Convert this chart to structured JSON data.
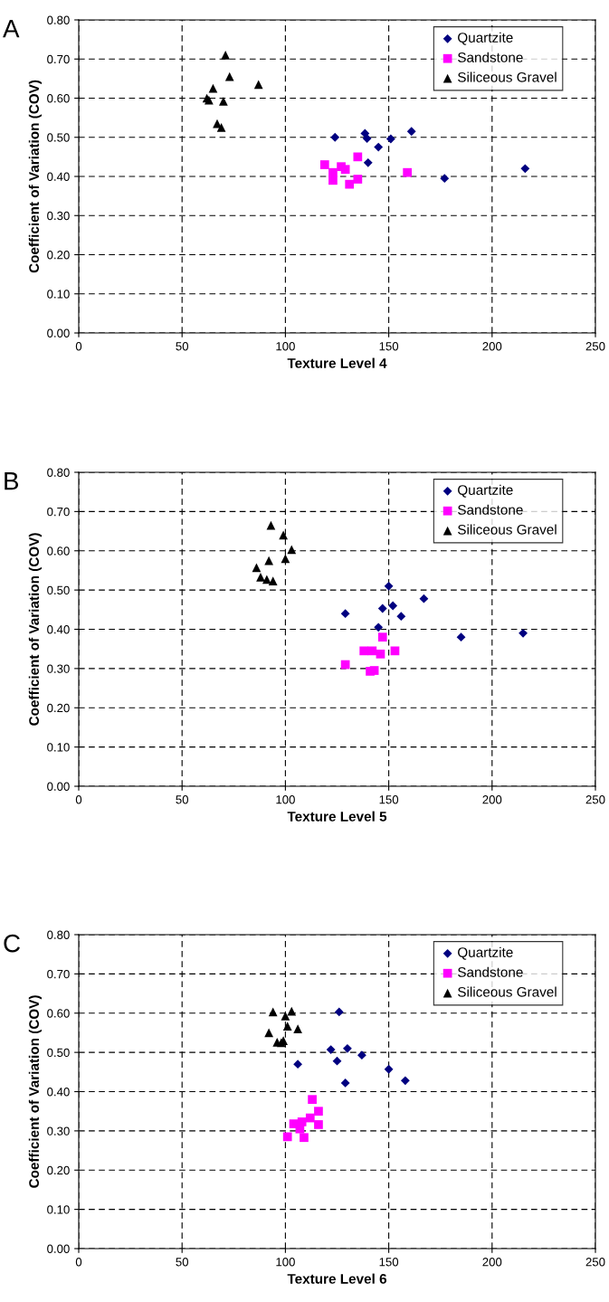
{
  "chart_data": [
    {
      "type": "scatter",
      "annotations": [
        "A"
      ],
      "xlabel": "Texture Level 4",
      "ylabel": "Coefficient of Variation (COV)",
      "xlim": [
        0,
        250
      ],
      "ylim": [
        0,
        0.8
      ],
      "xticks": [
        0,
        50,
        100,
        150,
        200,
        250
      ],
      "yticks": [
        {
          "value": 0,
          "label": "0.00"
        },
        {
          "value": 0.1,
          "label": "0.10"
        },
        {
          "value": 0.2,
          "label": "0.20"
        },
        {
          "value": 0.3,
          "label": "0.30"
        },
        {
          "value": 0.4,
          "label": "0.40"
        },
        {
          "value": 0.5,
          "label": "0.50"
        },
        {
          "value": 0.6,
          "label": "0.60"
        },
        {
          "value": 0.7,
          "label": "0.70"
        },
        {
          "value": 0.8,
          "label": "0.80"
        }
      ],
      "grid": true,
      "legend": "top right",
      "series": [
        {
          "name": "Quartzite",
          "color": "#000080",
          "marker": "diamond",
          "x": [
            124,
            138.5,
            139.5,
            145,
            151,
            161,
            140,
            177,
            216
          ],
          "values": [
            0.5,
            0.51,
            0.497,
            0.475,
            0.496,
            0.515,
            0.435,
            0.395,
            0.42
          ]
        },
        {
          "name": "Sandstone",
          "color": "#ff00ff",
          "marker": "square",
          "x": [
            119,
            123,
            127,
            129,
            123,
            135,
            131,
            135,
            159
          ],
          "values": [
            0.43,
            0.41,
            0.425,
            0.418,
            0.39,
            0.45,
            0.38,
            0.393,
            0.41
          ]
        },
        {
          "name": "Siliceous Gravel",
          "color": "#000000",
          "marker": "triangle",
          "x": [
            62,
            63,
            65,
            71,
            73,
            70,
            67,
            69,
            87
          ],
          "values": [
            0.6,
            0.595,
            0.625,
            0.71,
            0.655,
            0.592,
            0.535,
            0.525,
            0.635
          ]
        }
      ]
    },
    {
      "type": "scatter",
      "annotations": [
        "B"
      ],
      "xlabel": "Texture Level 5",
      "ylabel": "Coefficient of Variation (COV)",
      "xlim": [
        0,
        250
      ],
      "ylim": [
        0,
        0.8
      ],
      "xticks": [
        0,
        50,
        100,
        150,
        200,
        250
      ],
      "yticks": [
        {
          "value": 0,
          "label": "0.00"
        },
        {
          "value": 0.1,
          "label": "0.10"
        },
        {
          "value": 0.2,
          "label": "0.20"
        },
        {
          "value": 0.3,
          "label": "0.30"
        },
        {
          "value": 0.4,
          "label": "0.40"
        },
        {
          "value": 0.5,
          "label": "0.50"
        },
        {
          "value": 0.6,
          "label": "0.60"
        },
        {
          "value": 0.7,
          "label": "0.70"
        },
        {
          "value": 0.8,
          "label": "0.80"
        }
      ],
      "grid": true,
      "legend": "top right",
      "series": [
        {
          "name": "Quartzite",
          "color": "#000080",
          "marker": "diamond",
          "x": [
            150,
            167,
            147,
            152,
            156,
            129,
            145,
            185,
            215
          ],
          "values": [
            0.51,
            0.478,
            0.453,
            0.46,
            0.433,
            0.44,
            0.405,
            0.38,
            0.39
          ]
        },
        {
          "name": "Sandstone",
          "color": "#ff00ff",
          "marker": "square",
          "x": [
            147,
            138,
            142,
            146,
            153,
            129,
            141,
            143
          ],
          "values": [
            0.38,
            0.345,
            0.345,
            0.337,
            0.345,
            0.31,
            0.293,
            0.295
          ]
        },
        {
          "name": "Siliceous Gravel",
          "color": "#000000",
          "marker": "triangle",
          "x": [
            93,
            99,
            103,
            100,
            92,
            86,
            88,
            91,
            94
          ],
          "values": [
            0.665,
            0.64,
            0.603,
            0.58,
            0.575,
            0.557,
            0.533,
            0.527,
            0.523
          ]
        }
      ]
    },
    {
      "type": "scatter",
      "annotations": [
        "C"
      ],
      "xlabel": "Texture Level 6",
      "ylabel": "Coefficient of Variation (COV)",
      "xlim": [
        0,
        250
      ],
      "ylim": [
        0,
        0.8
      ],
      "xticks": [
        0,
        50,
        100,
        150,
        200,
        250
      ],
      "yticks": [
        {
          "value": 0,
          "label": "0.00"
        },
        {
          "value": 0.1,
          "label": "0.10"
        },
        {
          "value": 0.2,
          "label": "0.20"
        },
        {
          "value": 0.3,
          "label": "0.30"
        },
        {
          "value": 0.4,
          "label": "0.40"
        },
        {
          "value": 0.5,
          "label": "0.50"
        },
        {
          "value": 0.6,
          "label": "0.60"
        },
        {
          "value": 0.7,
          "label": "0.70"
        },
        {
          "value": 0.8,
          "label": "0.80"
        }
      ],
      "grid": true,
      "legend": "top right",
      "series": [
        {
          "name": "Quartzite",
          "color": "#000080",
          "marker": "diamond",
          "x": [
            126,
            122,
            130,
            137,
            125,
            106,
            150,
            158,
            129
          ],
          "values": [
            0.603,
            0.507,
            0.51,
            0.493,
            0.478,
            0.47,
            0.457,
            0.428,
            0.422
          ]
        },
        {
          "name": "Sandstone",
          "color": "#ff00ff",
          "marker": "square",
          "x": [
            113,
            116,
            112,
            104,
            108,
            116,
            107,
            101,
            109
          ],
          "values": [
            0.38,
            0.35,
            0.333,
            0.318,
            0.323,
            0.316,
            0.305,
            0.285,
            0.283
          ]
        },
        {
          "name": "Siliceous Gravel",
          "color": "#000000",
          "marker": "triangle",
          "x": [
            94,
            103,
            100,
            101,
            106,
            92,
            99,
            96,
            98
          ],
          "values": [
            0.603,
            0.605,
            0.593,
            0.567,
            0.56,
            0.55,
            0.53,
            0.526,
            0.525
          ]
        }
      ]
    }
  ]
}
